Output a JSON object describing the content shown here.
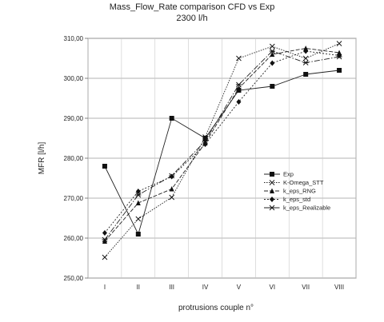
{
  "chart_data": {
    "type": "line",
    "title": "Mass_Flow_Rate  comparison CFD vs Exp",
    "subtitle": "2300 l/h",
    "xlabel": "protrusions couple n°",
    "ylabel": "MFR [l/h]",
    "categories": [
      "I",
      "II",
      "III",
      "IV",
      "V",
      "VI",
      "VII",
      "VIII"
    ],
    "ylim": [
      250,
      310
    ],
    "yticks": [
      "250,00",
      "260,00",
      "270,00",
      "280,00",
      "290,00",
      "300,00",
      "310,00"
    ],
    "grid": true,
    "legend_position": "right",
    "series": [
      {
        "name": "Exp",
        "marker": "square",
        "dash": "",
        "values": [
          278.0,
          261.0,
          290.0,
          285.0,
          297.0,
          298.0,
          301.0,
          302.0
        ]
      },
      {
        "name": "K-Omega_STT",
        "marker": "x",
        "dash": "1.5,1.5",
        "values": [
          255.2,
          264.8,
          270.2,
          285.3,
          305.0,
          308.0,
          305.0,
          308.7
        ]
      },
      {
        "name": "k_eps_RNG",
        "marker": "triangle",
        "dash": "5,2",
        "values": [
          259.2,
          268.8,
          272.3,
          283.8,
          297.5,
          306.0,
          307.5,
          306.4
        ]
      },
      {
        "name": "k_eps_std",
        "marker": "diamond",
        "dash": "2,2",
        "values": [
          261.3,
          271.7,
          275.4,
          283.5,
          294.1,
          303.8,
          306.8,
          305.7
        ]
      },
      {
        "name": "k_eps_Realizable",
        "marker": "asterisk",
        "dash": "7,2,1.5,2",
        "values": [
          259.6,
          270.8,
          275.6,
          284.3,
          298.4,
          306.8,
          303.9,
          305.4
        ]
      }
    ]
  }
}
